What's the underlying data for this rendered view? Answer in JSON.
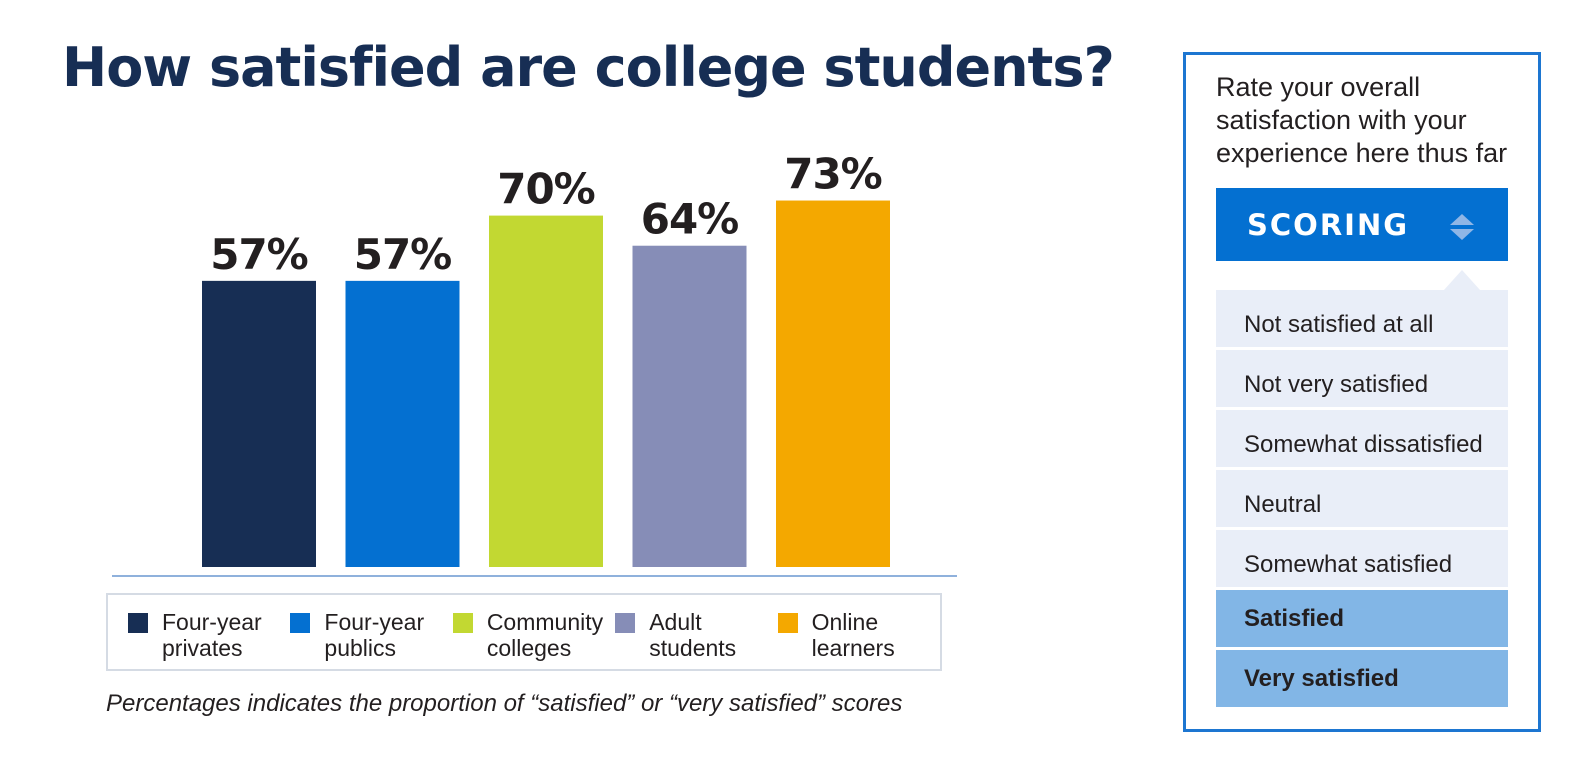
{
  "title": "How satisfied are college students?",
  "chart_data": {
    "type": "bar",
    "categories": [
      "Four-year privates",
      "Four-year publics",
      "Community colleges",
      "Adult students",
      "Online learners"
    ],
    "values": [
      57,
      57,
      70,
      64,
      73
    ],
    "value_labels": [
      "57%",
      "57%",
      "70%",
      "64%",
      "73%"
    ],
    "colors": [
      "#172e54",
      "#0470d1",
      "#c2d832",
      "#868db7",
      "#f4a800"
    ],
    "legend": [
      {
        "line1": "Four-year",
        "line2": "privates"
      },
      {
        "line1": "Four-year",
        "line2": "publics"
      },
      {
        "line1": "Community",
        "line2": "colleges"
      },
      {
        "line1": "Adult",
        "line2": "students"
      },
      {
        "line1": "Online",
        "line2": "learners"
      }
    ],
    "legend_placement": "bottom",
    "ylim": [
      0,
      100
    ],
    "grid": false
  },
  "footnote": "Percentages indicates the proportion of “satisfied” or “very satisfied” scores",
  "panel": {
    "question": "Rate your overall satisfaction with your experience here thus far",
    "scoring_label": "SCORING",
    "sort_icon": "sort-updown-icon",
    "options": [
      {
        "label": "Not satisfied at all",
        "selected": false
      },
      {
        "label": "Not very satisfied",
        "selected": false
      },
      {
        "label": "Somewhat dissatisfied",
        "selected": false
      },
      {
        "label": "Neutral",
        "selected": false
      },
      {
        "label": "Somewhat satisfied",
        "selected": false
      },
      {
        "label": "Satisfied",
        "selected": true
      },
      {
        "label": "Very satisfied",
        "selected": true
      }
    ]
  }
}
